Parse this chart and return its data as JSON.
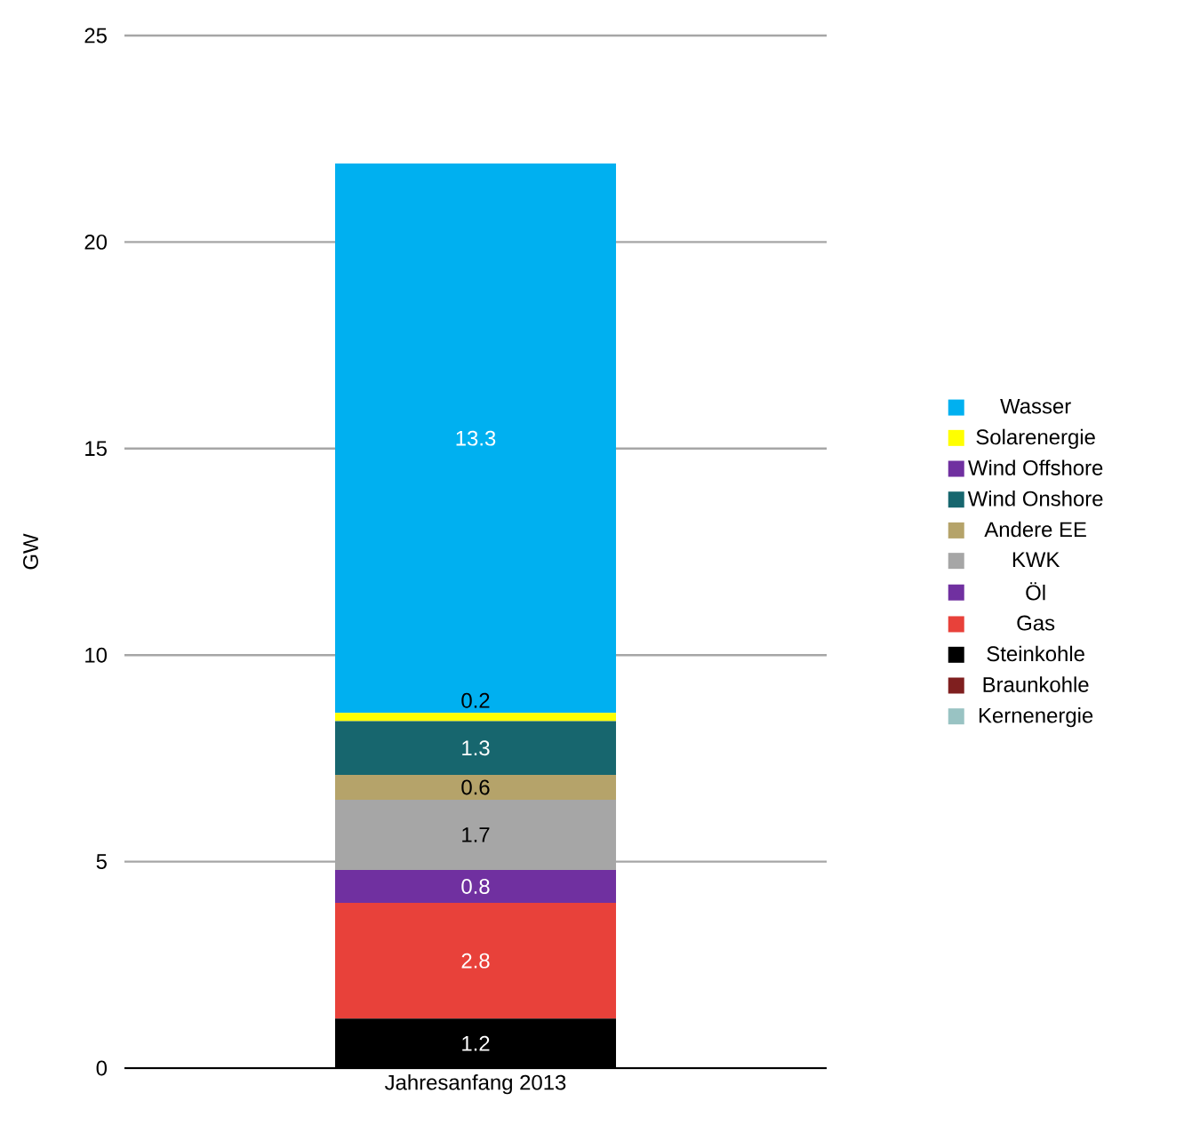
{
  "chart_data": {
    "type": "bar",
    "stacked": true,
    "ylabel": "GW",
    "categories": [
      "Jahresanfang 2013"
    ],
    "ylim": [
      0,
      25
    ],
    "yticks": [
      0,
      5,
      10,
      15,
      20,
      25
    ],
    "grid": "y",
    "legend": "right",
    "series": [
      {
        "name": "Kernenergie",
        "color": "#99c3c3",
        "values": [
          null
        ]
      },
      {
        "name": "Braunkohle",
        "color": "#7f1f1f",
        "values": [
          null
        ]
      },
      {
        "name": "Steinkohle",
        "color": "#000000",
        "values": [
          1.2
        ],
        "value_labels": [
          "1.2"
        ]
      },
      {
        "name": "Gas",
        "color": "#e8413a",
        "values": [
          2.8
        ],
        "value_labels": [
          "2.8"
        ]
      },
      {
        "name": "Öl",
        "color": "#7030a0",
        "values": [
          0.8
        ],
        "value_labels": [
          "0.8"
        ]
      },
      {
        "name": "KWK",
        "color": "#a6a6a6",
        "values": [
          1.7
        ],
        "value_labels": [
          "1.7"
        ]
      },
      {
        "name": "Andere EE",
        "color": "#b5a36a",
        "values": [
          0.6
        ],
        "value_labels": [
          "0.6"
        ]
      },
      {
        "name": "Wind Onshore",
        "color": "#17666e",
        "values": [
          1.3
        ],
        "value_labels": [
          "1.3"
        ]
      },
      {
        "name": "Wind Offshore",
        "color": "#7030a0",
        "values": [
          null
        ]
      },
      {
        "name": "Solarenergie",
        "color": "#ffff00",
        "values": [
          0.2
        ],
        "value_labels": [
          "0.2"
        ]
      },
      {
        "name": "Wasser",
        "color": "#00b0f0",
        "values": [
          13.3
        ],
        "value_labels": [
          "13.3"
        ]
      }
    ]
  }
}
